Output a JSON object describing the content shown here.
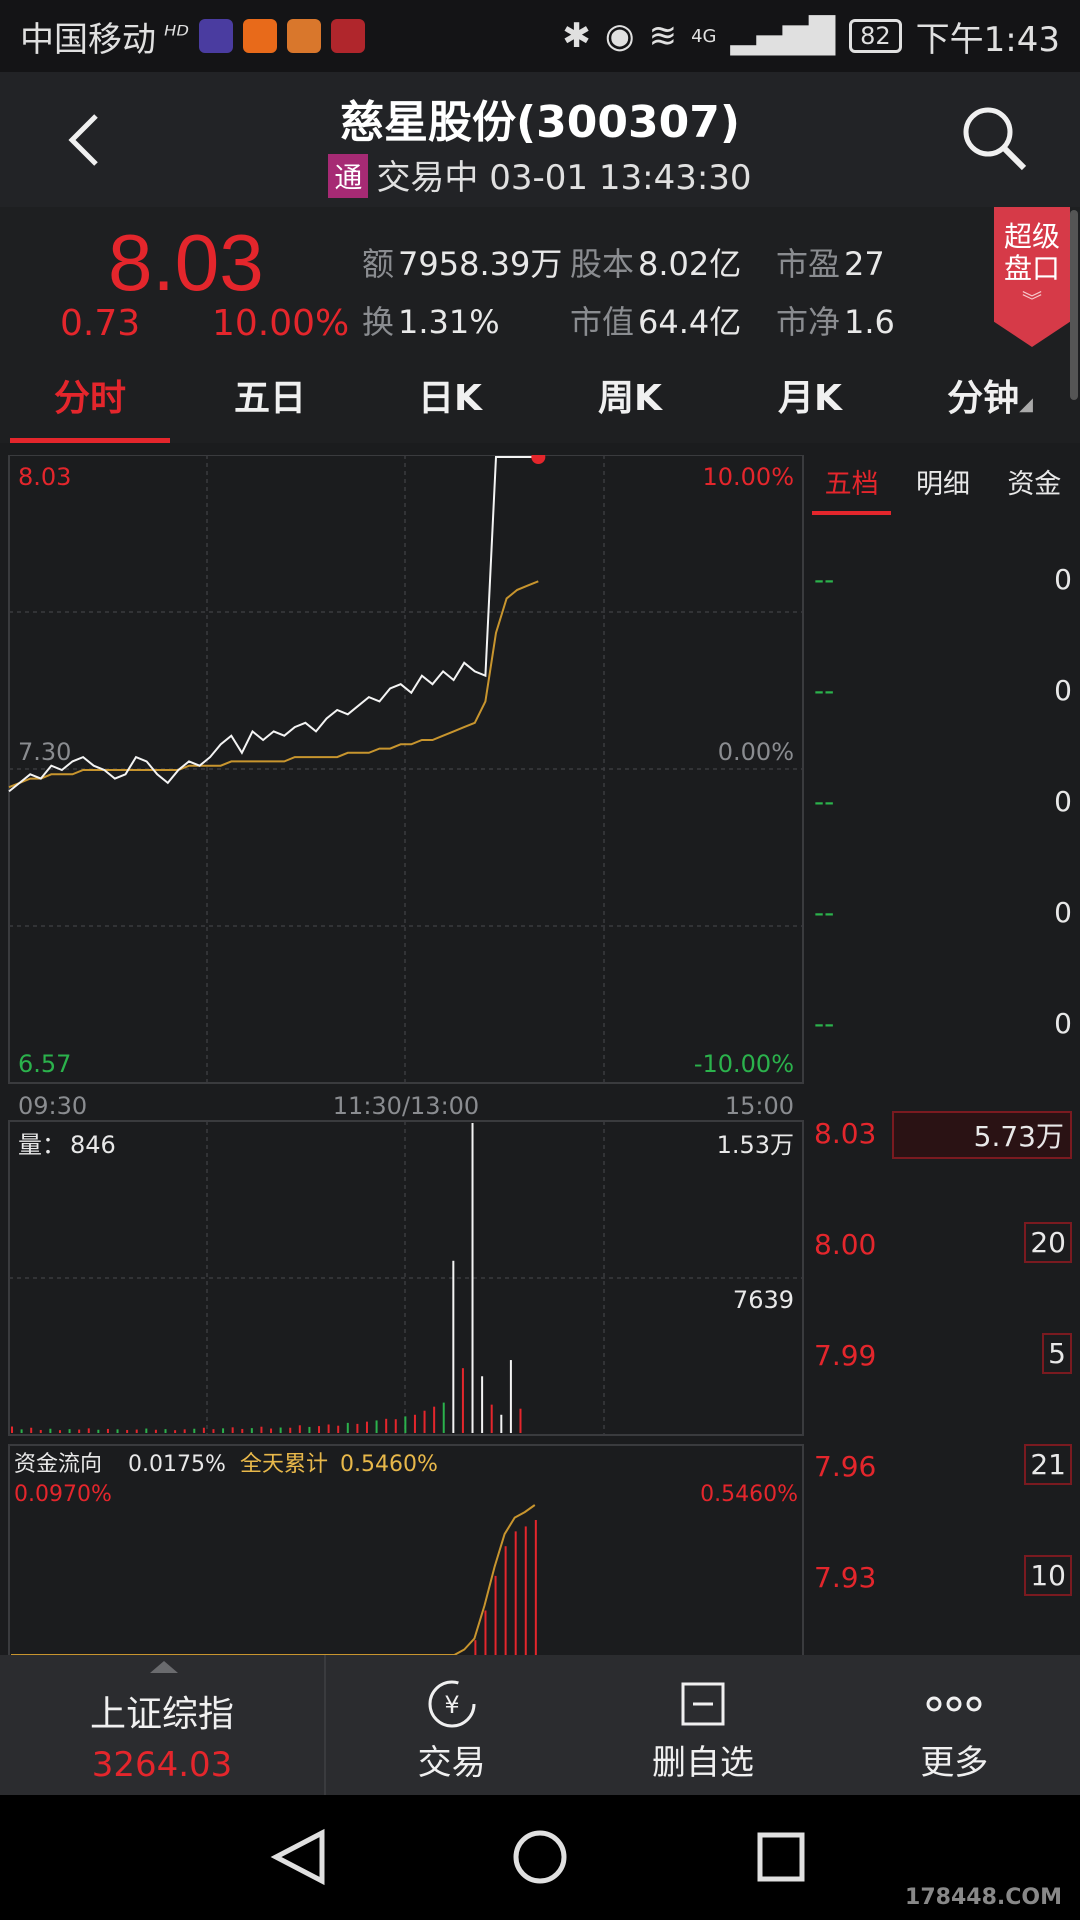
{
  "status_bar": {
    "carrier": "中国移动",
    "network": "4G",
    "battery": "82",
    "time": "下午1:43"
  },
  "header": {
    "title": "慈星股份(300307)",
    "badge": "通",
    "trade_status": "交易中 03-01 13:43:30"
  },
  "quote": {
    "price": "8.03",
    "change": "0.73",
    "change_pct": "10.00%",
    "amount_label": "额",
    "amount": "7958.39万",
    "capital_label": "股本",
    "capital": "8.02亿",
    "pe_label": "市盈",
    "pe": "27",
    "turnover_label": "换",
    "turnover": "1.31%",
    "mcap_label": "市值",
    "mcap": "64.4亿",
    "pb_label": "市净",
    "pb": "1.6",
    "super_panel": "超级盘口",
    "colors": {
      "up": "#e4262c",
      "down": "#2bb24c"
    }
  },
  "tabs": [
    "分时",
    "五日",
    "日K",
    "周K",
    "月K",
    "分钟"
  ],
  "active_tab": "分时",
  "chart": {
    "price_high": "8.03",
    "price_mid": "7.30",
    "price_low": "6.57",
    "pct_high": "10.00%",
    "pct_mid": "0.00%",
    "pct_low": "-10.00%",
    "time_start": "09:30",
    "time_mid": "11:30/13:00",
    "time_end": "15:00",
    "volume_label": "量：",
    "volume_value": "846",
    "volume_max": "1.53万",
    "volume_mid": "7639",
    "flow_label": "资金流向",
    "flow_value": "0.0175%",
    "flow_total_label": "全天累计",
    "flow_total_value": "0.5460%",
    "flow_left_top": "0.0970%",
    "flow_right_top": "0.5460%"
  },
  "chart_data": {
    "type": "line",
    "series": [
      {
        "y": [
          7.25,
          7.27,
          7.29,
          7.28,
          7.31,
          7.3,
          7.32,
          7.33,
          7.31,
          7.3,
          7.28,
          7.29,
          7.33,
          7.32,
          7.29,
          7.27,
          7.3,
          7.32,
          7.31,
          7.33,
          7.36,
          7.38,
          7.34,
          7.39,
          7.37,
          7.39,
          7.38,
          7.4,
          7.41,
          7.39,
          7.42,
          7.44,
          7.43,
          7.45,
          7.47,
          7.46,
          7.49,
          7.5,
          7.48,
          7.52,
          7.5,
          7.53,
          7.51,
          7.55,
          7.53,
          7.52,
          8.03,
          8.03,
          8.03,
          8.03,
          8.03
        ]
      },
      {
        "y": [
          7.26,
          7.27,
          7.28,
          7.28,
          7.29,
          7.29,
          7.29,
          7.3,
          7.3,
          7.3,
          7.3,
          7.3,
          7.3,
          7.3,
          7.3,
          7.3,
          7.3,
          7.31,
          7.31,
          7.31,
          7.31,
          7.32,
          7.32,
          7.32,
          7.32,
          7.32,
          7.32,
          7.33,
          7.33,
          7.33,
          7.33,
          7.33,
          7.34,
          7.34,
          7.34,
          7.35,
          7.35,
          7.36,
          7.36,
          7.37,
          7.37,
          7.38,
          7.39,
          7.4,
          7.41,
          7.46,
          7.62,
          7.7,
          7.72,
          7.73,
          7.74
        ]
      }
    ],
    "ylim": [
      6.57,
      8.03
    ],
    "volume_ylim": [
      0,
      15300
    ],
    "volume": [
      320,
      180,
      260,
      150,
      210,
      140,
      190,
      170,
      230,
      160,
      200,
      180,
      150,
      170,
      220,
      160,
      190,
      140,
      180,
      210,
      260,
      190,
      230,
      280,
      200,
      240,
      310,
      220,
      270,
      260,
      380,
      300,
      340,
      420,
      360,
      500,
      450,
      560,
      620,
      700,
      680,
      820,
      900,
      1100,
      1300,
      1500,
      8500,
      3200,
      15300,
      2800,
      1400,
      900,
      3600,
      1200
    ],
    "volume_up": [
      true,
      false,
      true,
      true,
      false,
      true,
      false,
      true,
      true,
      false,
      true,
      false,
      true,
      true,
      false,
      true,
      false,
      true,
      true,
      false,
      true,
      true,
      false,
      true,
      true,
      false,
      true,
      true,
      false,
      true,
      true,
      false,
      true,
      true,
      true,
      false,
      true,
      true,
      false,
      true,
      true,
      false,
      true,
      true,
      true,
      false,
      true,
      false,
      true,
      true,
      false,
      true,
      true,
      false
    ],
    "flow": [
      0,
      0,
      0,
      0,
      0,
      0,
      0,
      0,
      0,
      0,
      0,
      0,
      0,
      0,
      0,
      0,
      0,
      0,
      0,
      0,
      0,
      0,
      0,
      0,
      0,
      0,
      0,
      0,
      0,
      0,
      0,
      0,
      0,
      0,
      0,
      0,
      0,
      0,
      0,
      0,
      0,
      0,
      0,
      0,
      0,
      0.02,
      0.06,
      0.18,
      0.32,
      0.44,
      0.5,
      0.52,
      0.546
    ]
  },
  "order_book": {
    "tabs": [
      "五档",
      "明细",
      "资金"
    ],
    "sell": [
      {
        "price": "--",
        "volume": "0"
      },
      {
        "price": "--",
        "volume": "0"
      },
      {
        "price": "--",
        "volume": "0"
      },
      {
        "price": "--",
        "volume": "0"
      },
      {
        "price": "--",
        "volume": "0"
      }
    ],
    "buy": [
      {
        "price": "8.03",
        "volume": "5.73万"
      },
      {
        "price": "8.00",
        "volume": "20"
      },
      {
        "price": "7.99",
        "volume": "5"
      },
      {
        "price": "7.96",
        "volume": "21"
      },
      {
        "price": "7.93",
        "volume": "10"
      }
    ]
  },
  "toolbar": {
    "index_name": "上证综指",
    "index_value": "3264.03",
    "trade": "交易",
    "remove_watch": "删自选",
    "more": "更多"
  },
  "watermark": "178448.COM"
}
